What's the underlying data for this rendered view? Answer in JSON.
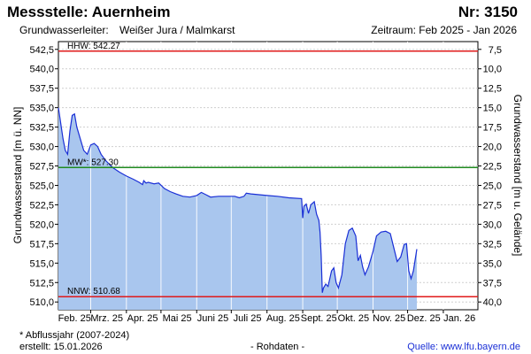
{
  "header": {
    "title": "Messstelle: Auernheim",
    "number": "Nr: 3150",
    "aquifer_label": "Grundwasserleiter:",
    "aquifer": "Weißer Jura / Malmkarst",
    "period": "Zeitraum: Feb 2025 - Jan 2026"
  },
  "footer": {
    "note": "* Abflussjahr (2007-2024)",
    "created": "erstellt:  15.01.2026",
    "raw": "- Rohdaten -",
    "source": "Quelle:  www.lfu.bayern.de"
  },
  "colors": {
    "fill": "#a9c6ee",
    "line": "#1a2fd6",
    "hhw": "#e01b1b",
    "mw": "#1f8a1f",
    "nnw": "#e01b1b",
    "grid": "#cfcfcf"
  },
  "chart_data": {
    "type": "area",
    "ylabel": "Grundwasserstand [m ü. NN]",
    "ylabel_right": "Grundwasserstand [m u. Gelände]",
    "ylim": [
      509.0,
      543.5
    ],
    "yticks": [
      "542,5",
      "540,0",
      "537,5",
      "535,0",
      "532,5",
      "530,0",
      "527,5",
      "525,0",
      "522,5",
      "520,0",
      "517,5",
      "515,0",
      "512,5",
      "510,0"
    ],
    "yticks_right": [
      "7,5",
      "10,0",
      "12,5",
      "15,0",
      "17,5",
      "20,0",
      "22,5",
      "25,0",
      "27,5",
      "30,0",
      "32,5",
      "35,0",
      "37,5",
      "40,0"
    ],
    "xlim": [
      "2025-02-01",
      "2026-01-31"
    ],
    "xticks": [
      {
        "date": "2025-02-15",
        "label": "Feb. 25"
      },
      {
        "date": "2025-03-15",
        "label": "Mrz. 25"
      },
      {
        "date": "2025-04-15",
        "label": "Apr. 25"
      },
      {
        "date": "2025-05-15",
        "label": "Mai 25"
      },
      {
        "date": "2025-06-15",
        "label": "Juni 25"
      },
      {
        "date": "2025-07-15",
        "label": "Juli 25"
      },
      {
        "date": "2025-08-15",
        "label": "Aug. 25"
      },
      {
        "date": "2025-09-15",
        "label": "Sept. 25"
      },
      {
        "date": "2025-10-15",
        "label": "Okt. 25"
      },
      {
        "date": "2025-11-15",
        "label": "Nov. 25"
      },
      {
        "date": "2025-12-15",
        "label": "Dez. 25"
      },
      {
        "date": "2026-01-15",
        "label": "Jan. 26"
      }
    ],
    "reference_lines": [
      {
        "name": "HHW",
        "label": "HHW: 542.27",
        "value": 542.27
      },
      {
        "name": "MW",
        "label": "MW*: 527.30",
        "value": 527.3
      },
      {
        "name": "NNW",
        "label": "NNW: 510.68",
        "value": 510.68
      }
    ],
    "series": [
      {
        "points": [
          [
            "2025-02-01",
            535.0
          ],
          [
            "2025-02-03",
            533.0
          ],
          [
            "2025-02-05",
            531.0
          ],
          [
            "2025-02-07",
            529.5
          ],
          [
            "2025-02-09",
            529.0
          ],
          [
            "2025-02-11",
            532.0
          ],
          [
            "2025-02-13",
            534.0
          ],
          [
            "2025-02-15",
            534.2
          ],
          [
            "2025-02-17",
            532.5
          ],
          [
            "2025-02-20",
            531.0
          ],
          [
            "2025-02-23",
            529.5
          ],
          [
            "2025-02-26",
            529.0
          ],
          [
            "2025-03-01",
            530.2
          ],
          [
            "2025-03-04",
            530.4
          ],
          [
            "2025-03-07",
            530.0
          ],
          [
            "2025-03-10",
            529.0
          ],
          [
            "2025-03-14",
            528.2
          ],
          [
            "2025-03-20",
            527.3
          ],
          [
            "2025-03-26",
            526.7
          ],
          [
            "2025-04-01",
            526.2
          ],
          [
            "2025-04-07",
            525.8
          ],
          [
            "2025-04-12",
            525.4
          ],
          [
            "2025-04-15",
            525.1
          ],
          [
            "2025-04-16",
            525.6
          ],
          [
            "2025-04-18",
            525.3
          ],
          [
            "2025-04-20",
            525.4
          ],
          [
            "2025-04-25",
            525.2
          ],
          [
            "2025-04-29",
            525.3
          ],
          [
            "2025-05-04",
            524.6
          ],
          [
            "2025-05-09",
            524.2
          ],
          [
            "2025-05-14",
            523.9
          ],
          [
            "2025-05-20",
            523.6
          ],
          [
            "2025-05-26",
            523.5
          ],
          [
            "2025-06-01",
            523.7
          ],
          [
            "2025-06-05",
            524.1
          ],
          [
            "2025-06-09",
            523.8
          ],
          [
            "2025-06-13",
            523.5
          ],
          [
            "2025-06-20",
            523.6
          ],
          [
            "2025-06-27",
            523.6
          ],
          [
            "2025-07-04",
            523.6
          ],
          [
            "2025-07-08",
            523.4
          ],
          [
            "2025-07-12",
            523.6
          ],
          [
            "2025-07-14",
            524.0
          ],
          [
            "2025-07-18",
            523.9
          ],
          [
            "2025-07-25",
            523.8
          ],
          [
            "2025-08-01",
            523.7
          ],
          [
            "2025-08-10",
            523.6
          ],
          [
            "2025-08-20",
            523.4
          ],
          [
            "2025-08-31",
            523.3
          ],
          [
            "2025-09-01",
            520.8
          ],
          [
            "2025-09-02",
            522.3
          ],
          [
            "2025-09-04",
            522.6
          ],
          [
            "2025-09-06",
            521.4
          ],
          [
            "2025-09-08",
            522.5
          ],
          [
            "2025-09-11",
            522.9
          ],
          [
            "2025-09-13",
            521.3
          ],
          [
            "2025-09-15",
            520.5
          ],
          [
            "2025-09-16",
            519.0
          ],
          [
            "2025-09-17",
            516.0
          ],
          [
            "2025-09-18",
            511.2
          ],
          [
            "2025-09-19",
            511.8
          ],
          [
            "2025-09-21",
            512.3
          ],
          [
            "2025-09-23",
            512.0
          ],
          [
            "2025-09-26",
            514.0
          ],
          [
            "2025-09-28",
            514.4
          ],
          [
            "2025-09-30",
            512.5
          ],
          [
            "2025-10-02",
            511.8
          ],
          [
            "2025-10-05",
            513.5
          ],
          [
            "2025-10-08",
            517.5
          ],
          [
            "2025-10-11",
            519.2
          ],
          [
            "2025-10-14",
            519.5
          ],
          [
            "2025-10-17",
            518.5
          ],
          [
            "2025-10-19",
            515.3
          ],
          [
            "2025-10-21",
            516.0
          ],
          [
            "2025-10-23",
            514.5
          ],
          [
            "2025-10-25",
            513.5
          ],
          [
            "2025-10-28",
            514.5
          ],
          [
            "2025-11-01",
            516.5
          ],
          [
            "2025-11-04",
            518.5
          ],
          [
            "2025-11-08",
            519.0
          ],
          [
            "2025-11-12",
            519.1
          ],
          [
            "2025-11-16",
            518.8
          ],
          [
            "2025-11-19",
            517.0
          ],
          [
            "2025-11-22",
            515.2
          ],
          [
            "2025-11-25",
            515.8
          ],
          [
            "2025-11-28",
            517.4
          ],
          [
            "2025-11-30",
            517.5
          ],
          [
            "2025-12-02",
            514.0
          ],
          [
            "2025-12-04",
            513.0
          ],
          [
            "2025-12-06",
            514.0
          ],
          [
            "2025-12-09",
            516.8
          ]
        ]
      }
    ]
  }
}
